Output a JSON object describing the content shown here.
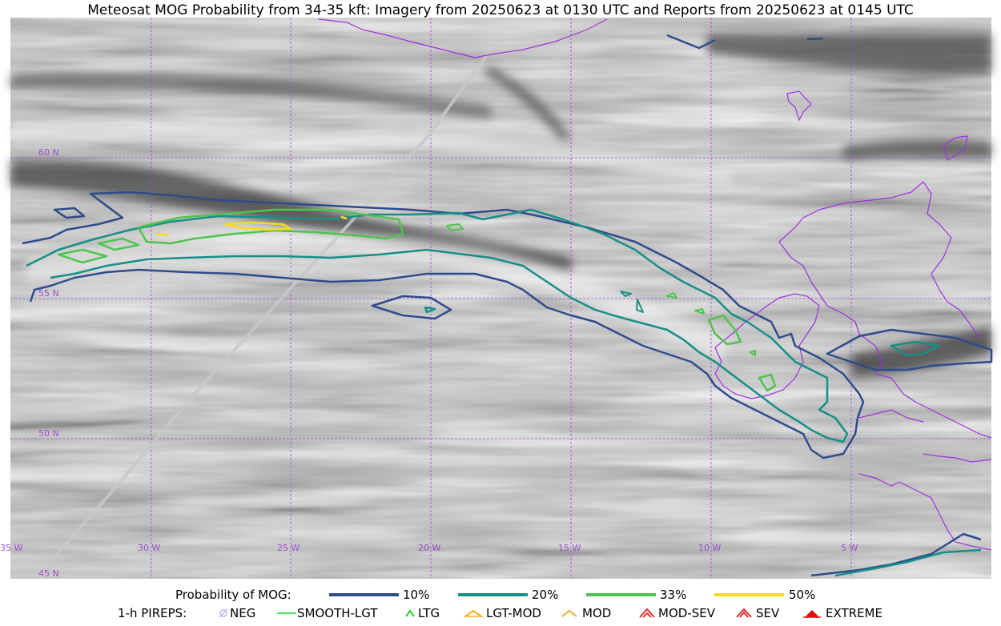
{
  "title": "Meteosat MOG Probability from 34-35 kft: Imagery from 20250623 at 0130 UTC and Reports from 20250623 at 0145 UTC",
  "map": {
    "lat_labels": [
      "60 N",
      "55 N",
      "50 N",
      "45 N"
    ],
    "lon_labels": [
      "35 W",
      "30 W",
      "25 W",
      "20 W",
      "15 W",
      "10 W",
      "5 W"
    ],
    "colors": {
      "grid": "#9a4fd0",
      "coast": "#a030e0",
      "contour_10": "#2f4b8c",
      "contour_20": "#168f86",
      "contour_33": "#4ec44e",
      "contour_50": "#f5dc12",
      "track": "#c8c8c8"
    }
  },
  "legend": {
    "prob_title": "Probability of MOG:",
    "prob_items": [
      {
        "label": "10%",
        "color": "#2f4b8c"
      },
      {
        "label": "20%",
        "color": "#168f86"
      },
      {
        "label": "33%",
        "color": "#4ec44e"
      },
      {
        "label": "50%",
        "color": "#f5dc12"
      }
    ],
    "pirep_title": "1-h PIREPS:",
    "pirep_items": [
      {
        "label": "NEG",
        "icon": "neg-symbol-icon",
        "color": "#b8b8f0"
      },
      {
        "label": "SMOOTH-LGT",
        "icon": "smooth-lgt-line-icon",
        "color": "#3ed43e"
      },
      {
        "label": "LTG",
        "icon": "ltg-chevron-icon",
        "color": "#20d020"
      },
      {
        "label": "LGT-MOD",
        "icon": "lgt-mod-symbol-icon",
        "color": "#f0b020"
      },
      {
        "label": "MOD",
        "icon": "mod-chevron-icon",
        "color": "#f0b020"
      },
      {
        "label": "MOD-SEV",
        "icon": "mod-sev-symbol-icon",
        "color": "#e82020"
      },
      {
        "label": "SEV",
        "icon": "sev-symbol-icon",
        "color": "#e82020"
      },
      {
        "label": "EXTREME",
        "icon": "extreme-symbol-icon",
        "color": "#e01010"
      }
    ]
  }
}
